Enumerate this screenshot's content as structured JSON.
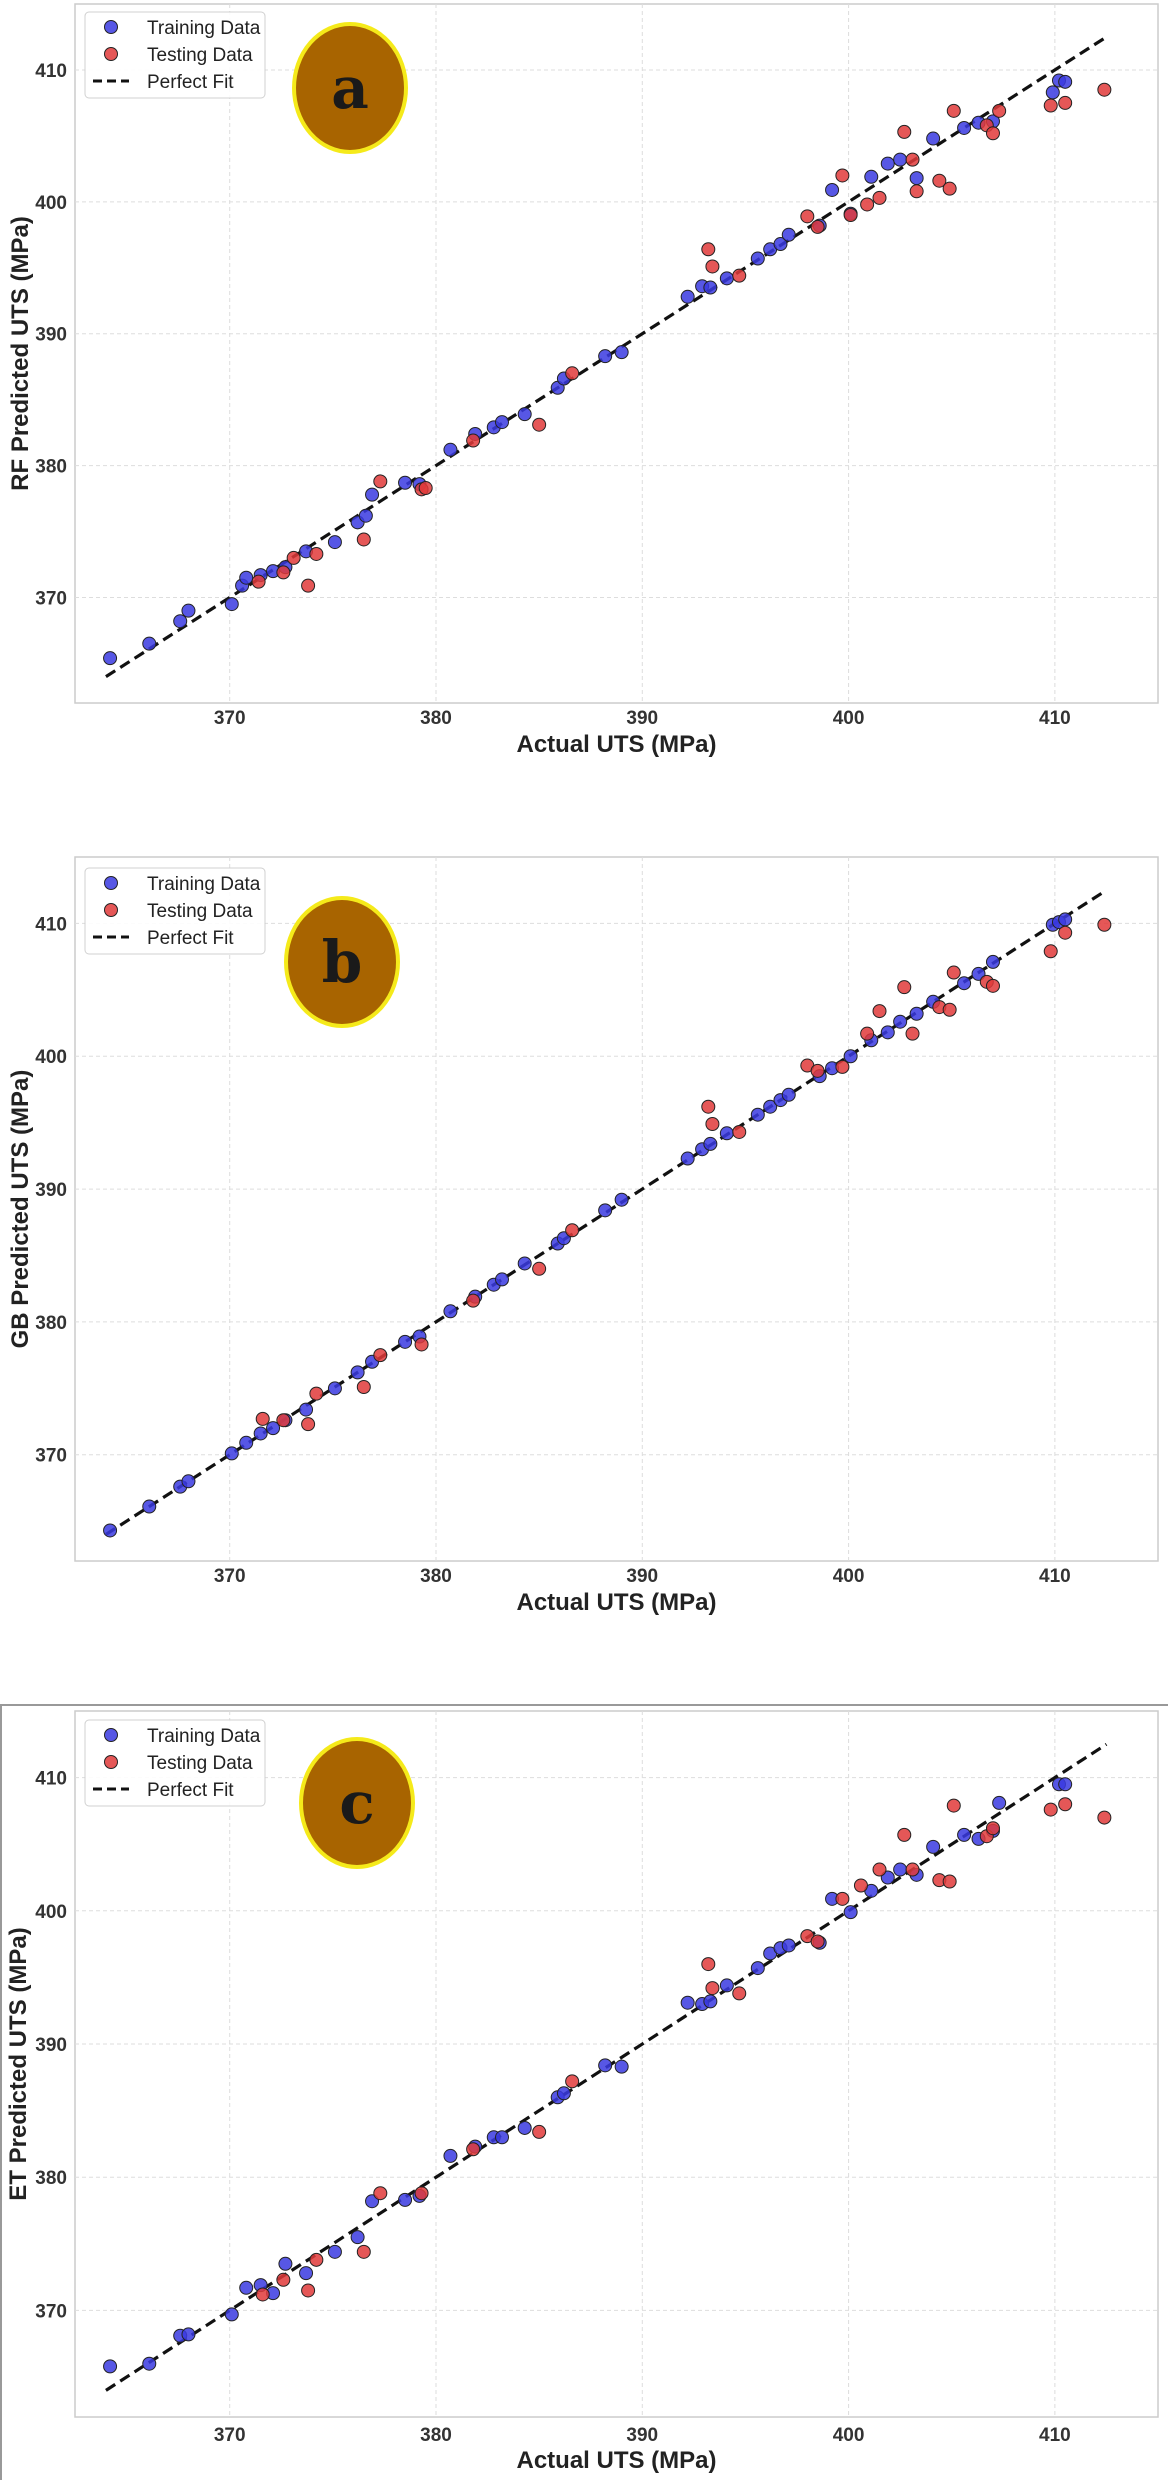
{
  "colors": {
    "training": "#3a3ae0",
    "testing": "#e03a3a",
    "fit_line": "#111111",
    "badge_fill": "#a86400",
    "badge_ring": "#f5ea1a",
    "grid": "#dddddd",
    "frame": "#cccccc"
  },
  "chart_data": [
    {
      "type": "scatter",
      "panel": "a",
      "xlabel": "Actual UTS (MPa)",
      "ylabel": "RF Predicted UTS (MPa)",
      "xlim": [
        362.5,
        415
      ],
      "ylim": [
        362,
        415
      ],
      "xticks": [
        370,
        380,
        390,
        400,
        410
      ],
      "yticks": [
        370,
        380,
        390,
        400,
        410
      ],
      "legend": {
        "position": "top-left",
        "entries": [
          "Training Data",
          "Testing Data",
          "Perfect Fit"
        ]
      },
      "perfect_fit": [
        [
          364,
          364
        ],
        [
          412.5,
          412.5
        ]
      ],
      "series": [
        {
          "name": "Training Data",
          "points": [
            [
              364.2,
              365.4
            ],
            [
              366.1,
              366.5
            ],
            [
              367.6,
              368.2
            ],
            [
              368.0,
              369.0
            ],
            [
              370.1,
              369.5
            ],
            [
              370.6,
              370.9
            ],
            [
              370.8,
              371.5
            ],
            [
              371.5,
              371.7
            ],
            [
              372.1,
              372.0
            ],
            [
              372.7,
              372.3
            ],
            [
              373.7,
              373.5
            ],
            [
              375.1,
              374.2
            ],
            [
              376.2,
              375.7
            ],
            [
              376.6,
              376.2
            ],
            [
              376.9,
              377.8
            ],
            [
              378.5,
              378.7
            ],
            [
              379.2,
              378.6
            ],
            [
              380.7,
              381.2
            ],
            [
              381.9,
              382.4
            ],
            [
              382.8,
              382.9
            ],
            [
              383.2,
              383.3
            ],
            [
              384.3,
              383.9
            ],
            [
              385.9,
              385.9
            ],
            [
              386.2,
              386.6
            ],
            [
              388.2,
              388.3
            ],
            [
              389.0,
              388.6
            ],
            [
              392.2,
              392.8
            ],
            [
              392.9,
              393.6
            ],
            [
              393.3,
              393.5
            ],
            [
              394.1,
              394.2
            ],
            [
              395.6,
              395.7
            ],
            [
              396.2,
              396.4
            ],
            [
              396.7,
              396.8
            ],
            [
              397.1,
              397.5
            ],
            [
              398.6,
              398.2
            ],
            [
              399.2,
              400.9
            ],
            [
              400.1,
              399.1
            ],
            [
              401.1,
              401.9
            ],
            [
              401.9,
              402.9
            ],
            [
              402.5,
              403.2
            ],
            [
              403.3,
              401.8
            ],
            [
              404.1,
              404.8
            ],
            [
              405.6,
              405.6
            ],
            [
              406.3,
              406.0
            ],
            [
              407.0,
              406.1
            ],
            [
              409.9,
              408.3
            ],
            [
              410.2,
              409.2
            ],
            [
              410.5,
              409.1
            ]
          ]
        },
        {
          "name": "Testing Data",
          "points": [
            [
              371.4,
              371.2
            ],
            [
              372.6,
              371.9
            ],
            [
              373.1,
              373.0
            ],
            [
              373.8,
              370.9
            ],
            [
              374.2,
              373.3
            ],
            [
              376.5,
              374.4
            ],
            [
              377.3,
              378.8
            ],
            [
              379.3,
              378.2
            ],
            [
              379.5,
              378.3
            ],
            [
              381.8,
              381.9
            ],
            [
              385.0,
              383.1
            ],
            [
              386.6,
              387.0
            ],
            [
              393.2,
              396.4
            ],
            [
              393.4,
              395.1
            ],
            [
              394.7,
              394.4
            ],
            [
              398.0,
              398.9
            ],
            [
              398.5,
              398.1
            ],
            [
              399.7,
              402.0
            ],
            [
              400.1,
              399.0
            ],
            [
              400.9,
              399.8
            ],
            [
              401.5,
              400.3
            ],
            [
              402.7,
              405.3
            ],
            [
              403.1,
              403.2
            ],
            [
              403.3,
              400.8
            ],
            [
              404.4,
              401.6
            ],
            [
              404.9,
              401.0
            ],
            [
              405.1,
              406.9
            ],
            [
              406.7,
              405.8
            ],
            [
              407.0,
              405.2
            ],
            [
              407.3,
              406.9
            ],
            [
              409.8,
              407.3
            ],
            [
              410.5,
              407.5
            ],
            [
              412.4,
              408.5
            ]
          ]
        }
      ]
    },
    {
      "type": "scatter",
      "panel": "b",
      "xlabel": "Actual UTS (MPa)",
      "ylabel": "GB Predicted UTS (MPa)",
      "xlim": [
        362.5,
        415
      ],
      "ylim": [
        362,
        415
      ],
      "xticks": [
        370,
        380,
        390,
        400,
        410
      ],
      "yticks": [
        370,
        380,
        390,
        400,
        410
      ],
      "legend": {
        "position": "top-left",
        "entries": [
          "Training Data",
          "Testing Data",
          "Perfect Fit"
        ]
      },
      "perfect_fit": [
        [
          364,
          364
        ],
        [
          412.5,
          412.5
        ]
      ],
      "series": [
        {
          "name": "Training Data",
          "points": [
            [
              364.2,
              364.3
            ],
            [
              366.1,
              366.1
            ],
            [
              367.6,
              367.6
            ],
            [
              368.0,
              368.0
            ],
            [
              370.1,
              370.1
            ],
            [
              370.8,
              370.9
            ],
            [
              371.5,
              371.6
            ],
            [
              372.1,
              372.0
            ],
            [
              372.7,
              372.6
            ],
            [
              373.7,
              373.4
            ],
            [
              375.1,
              375.0
            ],
            [
              376.2,
              376.2
            ],
            [
              376.9,
              377.0
            ],
            [
              378.5,
              378.5
            ],
            [
              379.2,
              378.9
            ],
            [
              380.7,
              380.8
            ],
            [
              381.9,
              381.9
            ],
            [
              382.8,
              382.8
            ],
            [
              383.2,
              383.2
            ],
            [
              384.3,
              384.4
            ],
            [
              385.9,
              385.9
            ],
            [
              386.2,
              386.3
            ],
            [
              388.2,
              388.4
            ],
            [
              389.0,
              389.2
            ],
            [
              392.2,
              392.3
            ],
            [
              392.9,
              393.0
            ],
            [
              393.3,
              393.4
            ],
            [
              394.1,
              394.2
            ],
            [
              395.6,
              395.6
            ],
            [
              396.2,
              396.2
            ],
            [
              396.7,
              396.7
            ],
            [
              397.1,
              397.1
            ],
            [
              398.6,
              398.5
            ],
            [
              399.2,
              399.1
            ],
            [
              400.1,
              400.0
            ],
            [
              401.1,
              401.2
            ],
            [
              401.9,
              401.8
            ],
            [
              402.5,
              402.6
            ],
            [
              403.3,
              403.2
            ],
            [
              404.1,
              404.1
            ],
            [
              405.6,
              405.5
            ],
            [
              406.3,
              406.2
            ],
            [
              407.0,
              407.1
            ],
            [
              409.9,
              409.9
            ],
            [
              410.2,
              410.1
            ],
            [
              410.5,
              410.3
            ]
          ]
        },
        {
          "name": "Testing Data",
          "points": [
            [
              371.6,
              372.7
            ],
            [
              372.6,
              372.6
            ],
            [
              373.8,
              372.3
            ],
            [
              374.2,
              374.6
            ],
            [
              376.5,
              375.1
            ],
            [
              377.3,
              377.5
            ],
            [
              379.3,
              378.3
            ],
            [
              381.8,
              381.6
            ],
            [
              385.0,
              384.0
            ],
            [
              386.6,
              386.9
            ],
            [
              393.2,
              396.2
            ],
            [
              393.4,
              394.9
            ],
            [
              394.7,
              394.3
            ],
            [
              398.0,
              399.3
            ],
            [
              398.5,
              398.9
            ],
            [
              399.7,
              399.2
            ],
            [
              400.9,
              401.7
            ],
            [
              401.5,
              403.4
            ],
            [
              402.7,
              405.2
            ],
            [
              403.1,
              401.7
            ],
            [
              404.4,
              403.7
            ],
            [
              404.9,
              403.5
            ],
            [
              405.1,
              406.3
            ],
            [
              406.7,
              405.6
            ],
            [
              407.0,
              405.3
            ],
            [
              409.8,
              407.9
            ],
            [
              410.5,
              409.3
            ],
            [
              412.4,
              409.9
            ]
          ]
        }
      ]
    },
    {
      "type": "scatter",
      "panel": "c",
      "xlabel": "Actual UTS (MPa)",
      "ylabel": "ET Predicted UTS (MPa)",
      "xlim": [
        362.5,
        415
      ],
      "ylim": [
        362,
        415
      ],
      "xticks": [
        370,
        380,
        390,
        400,
        410
      ],
      "yticks": [
        370,
        380,
        390,
        400,
        410
      ],
      "legend": {
        "position": "top-left",
        "entries": [
          "Training Data",
          "Testing Data",
          "Perfect Fit"
        ]
      },
      "perfect_fit": [
        [
          364,
          364
        ],
        [
          412.5,
          412.5
        ]
      ],
      "series": [
        {
          "name": "Training Data",
          "points": [
            [
              364.2,
              365.8
            ],
            [
              366.1,
              366.0
            ],
            [
              367.6,
              368.1
            ],
            [
              368.0,
              368.2
            ],
            [
              370.1,
              369.7
            ],
            [
              370.8,
              371.7
            ],
            [
              371.5,
              371.9
            ],
            [
              372.1,
              371.3
            ],
            [
              372.7,
              373.5
            ],
            [
              373.7,
              372.8
            ],
            [
              375.1,
              374.4
            ],
            [
              376.2,
              375.5
            ],
            [
              376.9,
              378.2
            ],
            [
              378.5,
              378.3
            ],
            [
              379.2,
              378.6
            ],
            [
              380.7,
              381.6
            ],
            [
              381.9,
              382.3
            ],
            [
              382.8,
              383.0
            ],
            [
              383.2,
              383.0
            ],
            [
              384.3,
              383.7
            ],
            [
              385.9,
              386.0
            ],
            [
              386.2,
              386.3
            ],
            [
              388.2,
              388.4
            ],
            [
              389.0,
              388.3
            ],
            [
              392.2,
              393.1
            ],
            [
              392.9,
              393.0
            ],
            [
              393.3,
              393.2
            ],
            [
              394.1,
              394.4
            ],
            [
              395.6,
              395.7
            ],
            [
              396.2,
              396.8
            ],
            [
              396.7,
              397.2
            ],
            [
              397.1,
              397.4
            ],
            [
              398.6,
              397.6
            ],
            [
              399.2,
              400.9
            ],
            [
              400.1,
              399.9
            ],
            [
              401.1,
              401.5
            ],
            [
              401.9,
              402.5
            ],
            [
              402.5,
              403.1
            ],
            [
              403.3,
              402.7
            ],
            [
              404.1,
              404.8
            ],
            [
              405.6,
              405.7
            ],
            [
              406.3,
              405.4
            ],
            [
              407.0,
              406.0
            ],
            [
              407.3,
              408.1
            ],
            [
              410.2,
              409.5
            ],
            [
              410.5,
              409.5
            ]
          ]
        },
        {
          "name": "Testing Data",
          "points": [
            [
              371.6,
              371.2
            ],
            [
              372.6,
              372.3
            ],
            [
              373.8,
              371.5
            ],
            [
              374.2,
              373.8
            ],
            [
              376.5,
              374.4
            ],
            [
              377.3,
              378.8
            ],
            [
              379.3,
              378.8
            ],
            [
              381.8,
              382.1
            ],
            [
              385.0,
              383.4
            ],
            [
              386.6,
              387.2
            ],
            [
              393.2,
              396.0
            ],
            [
              393.4,
              394.2
            ],
            [
              394.7,
              393.8
            ],
            [
              398.0,
              398.1
            ],
            [
              398.5,
              397.7
            ],
            [
              399.7,
              400.9
            ],
            [
              400.6,
              401.9
            ],
            [
              401.5,
              403.1
            ],
            [
              402.7,
              405.7
            ],
            [
              403.1,
              403.1
            ],
            [
              404.4,
              402.3
            ],
            [
              404.9,
              402.2
            ],
            [
              405.1,
              407.9
            ],
            [
              406.7,
              405.6
            ],
            [
              407.0,
              406.2
            ],
            [
              409.8,
              407.6
            ],
            [
              410.5,
              408.0
            ],
            [
              412.4,
              407.0
            ]
          ]
        }
      ]
    }
  ]
}
